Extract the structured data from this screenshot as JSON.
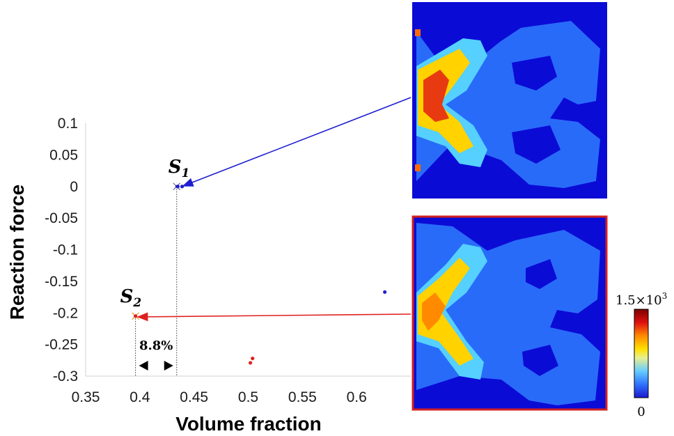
{
  "chart_data": {
    "type": "scatter",
    "xlabel": "Volume fraction",
    "ylabel": "Reaction force",
    "xlim": [
      0.35,
      0.65
    ],
    "ylim": [
      -0.3,
      0.1
    ],
    "xticks": [
      "0.35",
      "0.4",
      "0.45",
      "0.5",
      "0.55",
      "0.6"
    ],
    "yticks": [
      "0.1",
      "0.05",
      "0",
      "-0.05",
      "-0.1",
      "-0.15",
      "-0.2",
      "-0.25",
      "-0.3"
    ],
    "grid": false,
    "series": [
      {
        "color": "#1f1fd0",
        "points": [
          [
            0.435,
            0.0
          ],
          [
            0.439,
            0.0
          ],
          [
            0.626,
            -0.167
          ]
        ]
      },
      {
        "color": "#e02020",
        "points": [
          [
            0.396,
            -0.205
          ],
          [
            0.502,
            -0.279
          ],
          [
            0.504,
            -0.272
          ]
        ]
      }
    ],
    "annotations": {
      "s1": {
        "label": "S",
        "subscript": "1",
        "x": 0.434,
        "y": 0.0,
        "color": "#1f1fd0"
      },
      "s2": {
        "label": "S",
        "subscript": "2",
        "x": 0.396,
        "y": -0.205,
        "color": "#e02020"
      },
      "gap": {
        "text": "8.8%",
        "x_from": 0.396,
        "x_to": 0.434
      }
    },
    "colorbar": {
      "max_label": "1.5×10",
      "max_exp": "3",
      "min_label": "0"
    }
  }
}
